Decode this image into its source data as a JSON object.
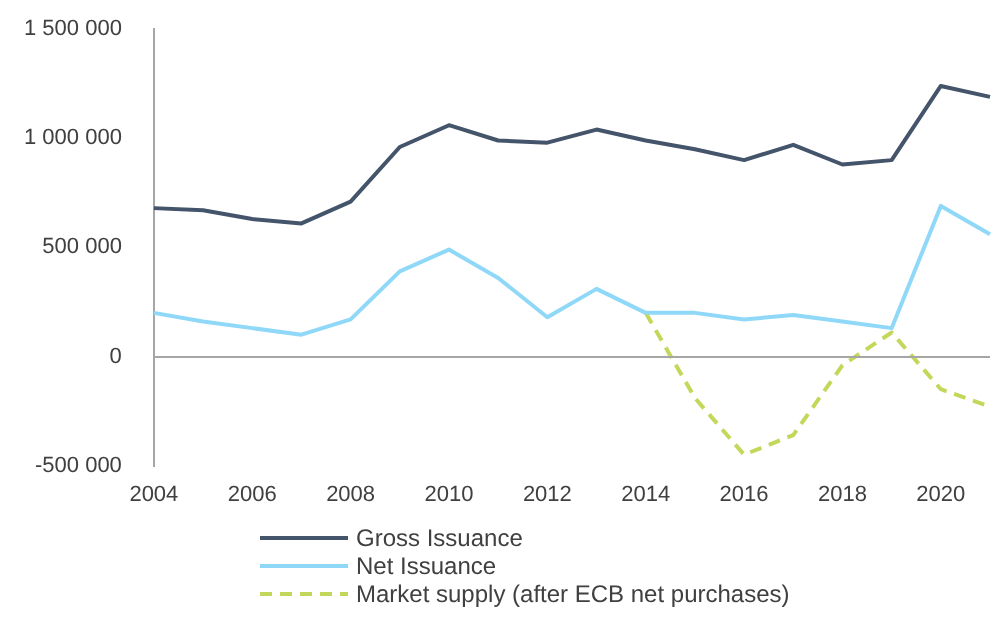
{
  "chart_data": {
    "type": "line",
    "categories": [
      "2004",
      null,
      "2006",
      null,
      "2008",
      null,
      "2010",
      null,
      "2012",
      null,
      "2014",
      null,
      "2016",
      null,
      "2018",
      null,
      "2020",
      null
    ],
    "series": [
      {
        "name": "Gross Issuance",
        "color": "#44546a",
        "values": [
          680000,
          670000,
          630000,
          610000,
          710000,
          960000,
          1060000,
          990000,
          980000,
          1040000,
          990000,
          950000,
          900000,
          970000,
          880000,
          900000,
          1240000,
          1190000
        ]
      },
      {
        "name": "Net Issuance",
        "color": "#8fd8f8",
        "values": [
          200000,
          160000,
          130000,
          100000,
          170000,
          390000,
          490000,
          360000,
          180000,
          310000,
          200000,
          200000,
          170000,
          190000,
          160000,
          130000,
          690000,
          560000
        ]
      },
      {
        "name": "Market supply (after ECB net purchases)",
        "color": "#c5d75a",
        "line_style": "dashed",
        "values": [
          null,
          null,
          null,
          null,
          null,
          null,
          null,
          null,
          null,
          null,
          200000,
          -190000,
          -450000,
          -360000,
          -40000,
          110000,
          -150000,
          -230000
        ]
      }
    ],
    "ylim": [
      -500000,
      1500000
    ],
    "yticks": [
      {
        "value": -500000,
        "label": "-500 000"
      },
      {
        "value": 0,
        "label": "0"
      },
      {
        "value": 500000,
        "label": "500 000"
      },
      {
        "value": 1000000,
        "label": "1 000 000"
      },
      {
        "value": 1500000,
        "label": "1 500 000"
      }
    ],
    "ref_lines": [
      {
        "axis": "y",
        "value": 0,
        "color": "#a6a6a6"
      }
    ],
    "grid": false,
    "legend": "bottom",
    "marker": "none"
  }
}
